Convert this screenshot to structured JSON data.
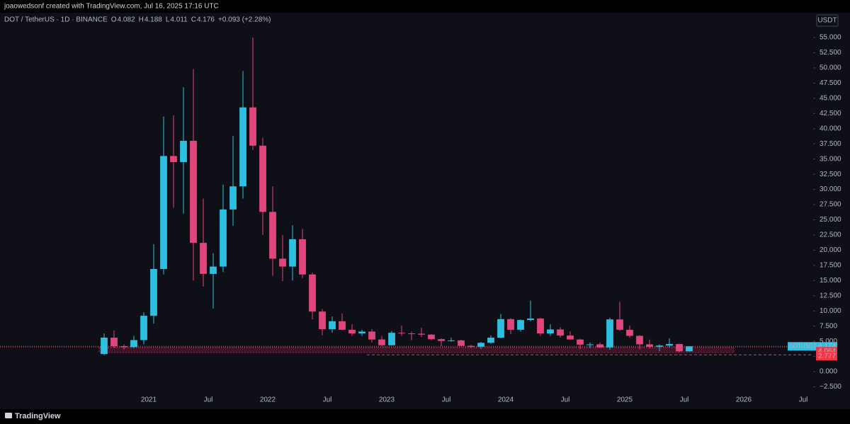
{
  "header_text": "joaowedsonf created with TradingView.com, Jul 16, 2025 17:16 UTC",
  "brand": "TradingView",
  "chart_data": {
    "type": "candlestick",
    "legend": {
      "symbol": "DOT / TetherUS · 1D · BINANCE",
      "items": [
        {
          "label": "O",
          "value": 4.082
        },
        {
          "label": "H",
          "value": 4.188
        },
        {
          "label": "L",
          "value": 4.011
        },
        {
          "label": "C",
          "value": 4.176
        }
      ],
      "change": "+0.093 (+2.28%)"
    },
    "currency": "USDT",
    "up_color": "#2fbfe0",
    "down_color": "#e0457b",
    "x": [
      "2020-08",
      "2020-09",
      "2020-10",
      "2020-11",
      "2020-12",
      "2021-01",
      "2021-02",
      "2021-03",
      "2021-04",
      "2021-05",
      "2021-06",
      "2021-07",
      "2021-08",
      "2021-09",
      "2021-10",
      "2021-11",
      "2021-12",
      "2022-01",
      "2022-02",
      "2022-03",
      "2022-04",
      "2022-05",
      "2022-06",
      "2022-07",
      "2022-08",
      "2022-09",
      "2022-10",
      "2022-11",
      "2022-12",
      "2023-01",
      "2023-02",
      "2023-03",
      "2023-04",
      "2023-05",
      "2023-06",
      "2023-07",
      "2023-08",
      "2023-09",
      "2023-10",
      "2023-11",
      "2023-12",
      "2024-01",
      "2024-02",
      "2024-03",
      "2024-04",
      "2024-05",
      "2024-06",
      "2024-07",
      "2024-08",
      "2024-09",
      "2024-10",
      "2024-11",
      "2024-12",
      "2025-01",
      "2025-02",
      "2025-03",
      "2025-04",
      "2025-05",
      "2025-06",
      "2025-07"
    ],
    "open": [
      2.9,
      5.6,
      4.2,
      4.05,
      5.2,
      9.2,
      16.9,
      35.5,
      34.5,
      38.0,
      21.2,
      16.1,
      17.3,
      26.7,
      30.5,
      43.5,
      37.2,
      26.3,
      18.6,
      17.3,
      21.8,
      16.0,
      9.9,
      7.0,
      8.3,
      6.9,
      6.3,
      6.6,
      5.3,
      4.35,
      6.4,
      6.3,
      6.25,
      6.1,
      5.35,
      5.05,
      5.15,
      4.25,
      4.1,
      4.75,
      5.6,
      8.65,
      6.9,
      8.5,
      8.75,
      6.3,
      6.95,
      5.95,
      5.3,
      4.45,
      4.5,
      4.0,
      8.6,
      6.9,
      5.9,
      4.5,
      4.1,
      4.3,
      4.55,
      3.35
    ],
    "high": [
      6.3,
      6.8,
      4.5,
      5.9,
      9.8,
      21.0,
      42.0,
      42.2,
      46.8,
      49.8,
      28.5,
      19.5,
      30.8,
      38.8,
      49.5,
      55.0,
      38.5,
      30.5,
      22.5,
      24.1,
      23.5,
      16.3,
      10.3,
      9.1,
      9.6,
      7.8,
      6.9,
      7.0,
      5.9,
      6.7,
      7.6,
      6.6,
      7.2,
      6.2,
      5.5,
      5.6,
      5.25,
      4.4,
      4.9,
      6.0,
      9.5,
      8.8,
      8.6,
      11.7,
      8.9,
      7.8,
      7.3,
      6.6,
      5.4,
      4.8,
      4.8,
      8.9,
      11.5,
      7.6,
      6.0,
      5.3,
      4.5,
      5.5,
      4.6,
      4.19
    ],
    "low": [
      2.7,
      3.9,
      3.6,
      3.9,
      4.5,
      7.9,
      16.0,
      27.0,
      26.0,
      15.0,
      14.0,
      10.4,
      16.4,
      24.0,
      28.5,
      36.5,
      22.5,
      15.8,
      14.9,
      15.0,
      15.4,
      8.6,
      6.0,
      6.4,
      6.8,
      5.9,
      5.9,
      4.8,
      4.2,
      4.3,
      5.9,
      5.2,
      5.7,
      5.2,
      4.2,
      4.9,
      4.2,
      3.9,
      3.75,
      4.6,
      5.5,
      6.2,
      6.6,
      8.3,
      5.9,
      5.9,
      5.6,
      5.3,
      3.7,
      3.9,
      3.9,
      3.6,
      6.7,
      5.6,
      3.7,
      3.8,
      3.4,
      4.0,
      3.2,
      3.3
    ],
    "close": [
      5.6,
      4.2,
      4.05,
      5.2,
      9.2,
      16.9,
      35.5,
      34.5,
      38.0,
      21.2,
      16.1,
      17.3,
      26.7,
      30.5,
      43.5,
      37.2,
      26.3,
      18.6,
      17.3,
      21.8,
      16.0,
      9.9,
      7.0,
      8.3,
      6.9,
      6.3,
      6.6,
      5.3,
      4.35,
      6.4,
      6.3,
      6.25,
      6.1,
      5.35,
      5.05,
      5.15,
      4.25,
      4.1,
      4.75,
      5.6,
      8.65,
      6.9,
      8.5,
      8.75,
      6.3,
      6.95,
      5.95,
      5.3,
      4.45,
      4.5,
      4.0,
      8.6,
      6.9,
      5.9,
      4.5,
      4.1,
      4.3,
      4.55,
      3.35,
      4.176
    ],
    "xlim": [
      "2019-10",
      "2026-08"
    ],
    "xticks": [
      {
        "value": "2021-01",
        "label": "2021"
      },
      {
        "value": "2021-07",
        "label": "Jul"
      },
      {
        "value": "2022-01",
        "label": "2022"
      },
      {
        "value": "2022-07",
        "label": "Jul"
      },
      {
        "value": "2023-01",
        "label": "2023"
      },
      {
        "value": "2023-07",
        "label": "Jul"
      },
      {
        "value": "2024-01",
        "label": "2024"
      },
      {
        "value": "2024-07",
        "label": "Jul"
      },
      {
        "value": "2025-01",
        "label": "2025"
      },
      {
        "value": "2025-07",
        "label": "Jul"
      },
      {
        "value": "2026-01",
        "label": "2026"
      },
      {
        "value": "2026-07",
        "label": "Jul"
      }
    ],
    "ylim": [
      -5,
      56.75
    ],
    "yticks": [
      {
        "value": -2.5,
        "label": "−2.500"
      },
      {
        "value": 0,
        "label": "0.000"
      },
      {
        "value": 2.5,
        "label": "2.500"
      },
      {
        "value": 5,
        "label": "5.000"
      },
      {
        "value": 7.5,
        "label": "7.500"
      },
      {
        "value": 10,
        "label": "10.000"
      },
      {
        "value": 12.5,
        "label": "12.500"
      },
      {
        "value": 15,
        "label": "15.000"
      },
      {
        "value": 17.5,
        "label": "17.500"
      },
      {
        "value": 20,
        "label": "20.000"
      },
      {
        "value": 22.5,
        "label": "22.500"
      },
      {
        "value": 25,
        "label": "25.000"
      },
      {
        "value": 27.5,
        "label": "27.500"
      },
      {
        "value": 30,
        "label": "30.000"
      },
      {
        "value": 32.5,
        "label": "32.500"
      },
      {
        "value": 35,
        "label": "35.000"
      },
      {
        "value": 37.5,
        "label": "37.500"
      },
      {
        "value": 40,
        "label": "40.000"
      },
      {
        "value": 42.5,
        "label": "42.500"
      },
      {
        "value": 45,
        "label": "45.000"
      },
      {
        "value": 47.5,
        "label": "47.500"
      },
      {
        "value": 50,
        "label": "50.000"
      },
      {
        "value": 52.5,
        "label": "52.500"
      },
      {
        "value": 55,
        "label": "55.000"
      }
    ],
    "last_price": {
      "label": "DOTUSDT",
      "value": 4.174,
      "color": "#2fbfe0"
    },
    "levels": [
      {
        "value": 4.064,
        "color": "#f23645",
        "start": "2019-10",
        "style": "dotted"
      },
      {
        "value": 2.777,
        "color": "#f23645",
        "start": "2022-11",
        "style": "dashed"
      }
    ],
    "zone": {
      "start": "2020-08",
      "end": "2025-12",
      "low": 3.15,
      "high": 3.96,
      "color": "#e91e63"
    }
  }
}
